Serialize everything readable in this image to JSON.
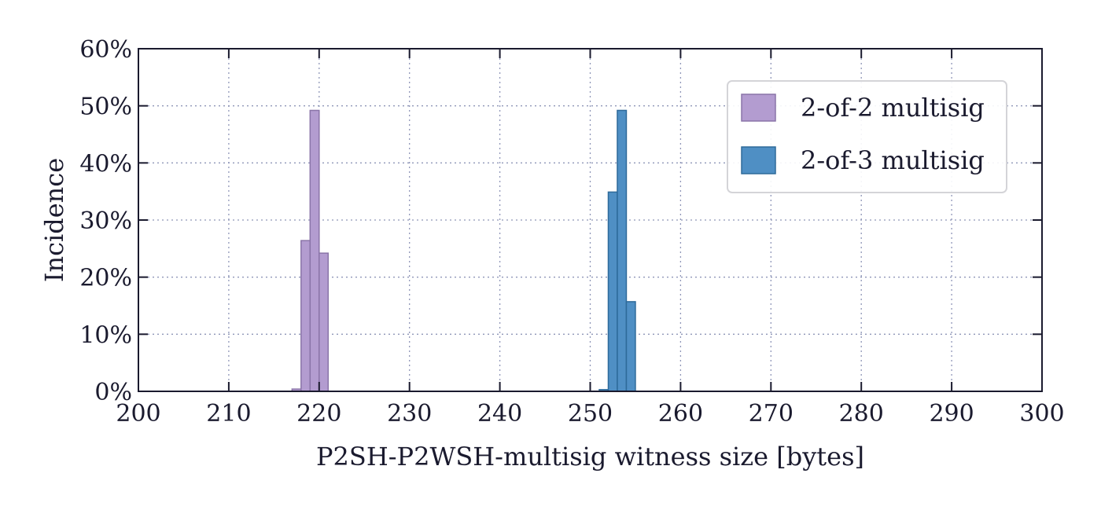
{
  "chart_data": {
    "type": "bar",
    "xlabel": "P2SH-P2WSH-multisig witness size [bytes]",
    "ylabel": "Incidence",
    "xlim": [
      200,
      300
    ],
    "ylim": [
      0,
      60
    ],
    "x_ticks": [
      "200",
      "210",
      "220",
      "230",
      "240",
      "250",
      "260",
      "270",
      "280",
      "290",
      "300"
    ],
    "y_ticks": [
      "0%",
      "10%",
      "20%",
      "30%",
      "40%",
      "50%",
      "60%"
    ],
    "grid": true,
    "legend_position": "top-right",
    "bin_width": 1,
    "series": [
      {
        "name": "2-of-2 multisig",
        "color": "#b39cd0",
        "edge_color": "#8a74a8",
        "x": [
          217,
          218,
          219,
          220
        ],
        "values": [
          0.4,
          26.4,
          49.2,
          24.2
        ]
      },
      {
        "name": "2-of-3 multisig",
        "color": "#4f8fc4",
        "edge_color": "#2e6a9a",
        "x": [
          251,
          252,
          253,
          254
        ],
        "values": [
          0.3,
          34.9,
          49.2,
          15.7
        ]
      }
    ]
  }
}
